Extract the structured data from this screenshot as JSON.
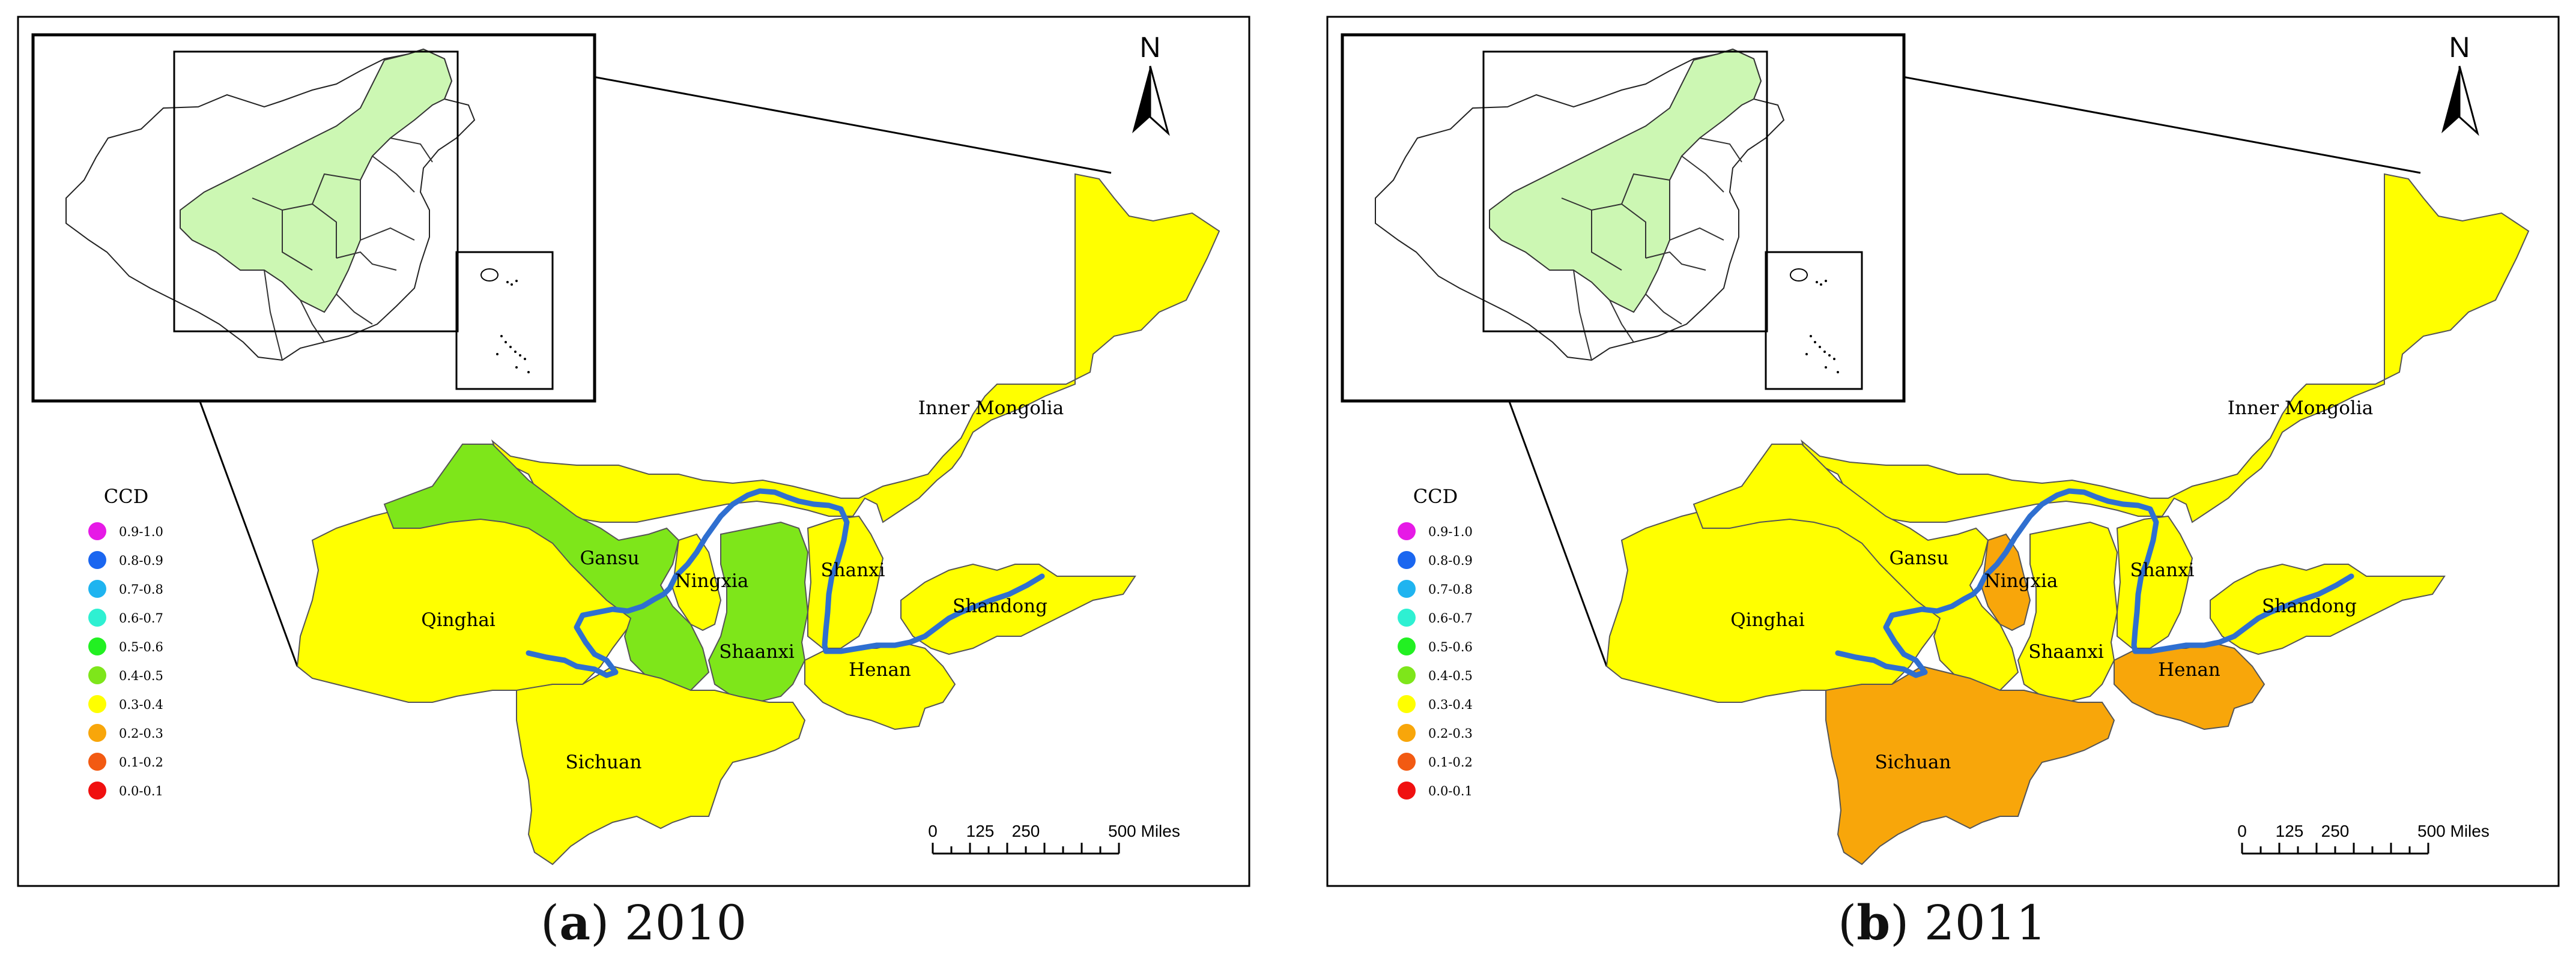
{
  "legend": {
    "title": "CCD",
    "items": [
      {
        "label": "0.9-1.0",
        "color": "#e61ae6"
      },
      {
        "label": "0.8-0.9",
        "color": "#1a66f0"
      },
      {
        "label": "0.7-0.8",
        "color": "#1fb4f0"
      },
      {
        "label": "0.6-0.7",
        "color": "#2ef0d2"
      },
      {
        "label": "0.5-0.6",
        "color": "#22f022"
      },
      {
        "label": "0.4-0.5",
        "color": "#7ee61a"
      },
      {
        "label": "0.3-0.4",
        "color": "#ffff00"
      },
      {
        "label": "0.2-0.3",
        "color": "#f8a60a"
      },
      {
        "label": "0.1-0.2",
        "color": "#f25a12"
      },
      {
        "label": "0.0-0.1",
        "color": "#f01010"
      }
    ]
  },
  "north": "N",
  "scalebar": {
    "ticks": [
      "0",
      "125",
      "250",
      "500 Miles"
    ]
  },
  "region_names": {
    "inner_mongolia": "Inner Mongolia",
    "gansu": "Gansu",
    "ningxia": "Ningxia",
    "qinghai": "Qinghai",
    "shanxi": "Shanxi",
    "shandong": "Shandong",
    "shaanxi": "Shaanxi",
    "henan": "Henan",
    "sichuan": "Sichuan"
  },
  "colors": {
    "river": "#2f6fd0",
    "inset_highlight": "#ccf7b3",
    "frame": "#000000"
  },
  "panels": [
    {
      "id": "a",
      "letter": "a",
      "year": "2010",
      "region_ccd": {
        "inner_mongolia": "0.3-0.4",
        "gansu": "0.4-0.5",
        "ningxia": "0.3-0.4",
        "qinghai": "0.3-0.4",
        "shanxi": "0.3-0.4",
        "shandong": "0.3-0.4",
        "shaanxi": "0.4-0.5",
        "henan": "0.3-0.4",
        "sichuan": "0.3-0.4"
      }
    },
    {
      "id": "b",
      "letter": "b",
      "year": "2011",
      "region_ccd": {
        "inner_mongolia": "0.3-0.4",
        "gansu": "0.3-0.4",
        "ningxia": "0.2-0.3",
        "qinghai": "0.3-0.4",
        "shanxi": "0.3-0.4",
        "shandong": "0.3-0.4",
        "shaanxi": "0.3-0.4",
        "henan": "0.2-0.3",
        "sichuan": "0.2-0.3"
      }
    }
  ]
}
